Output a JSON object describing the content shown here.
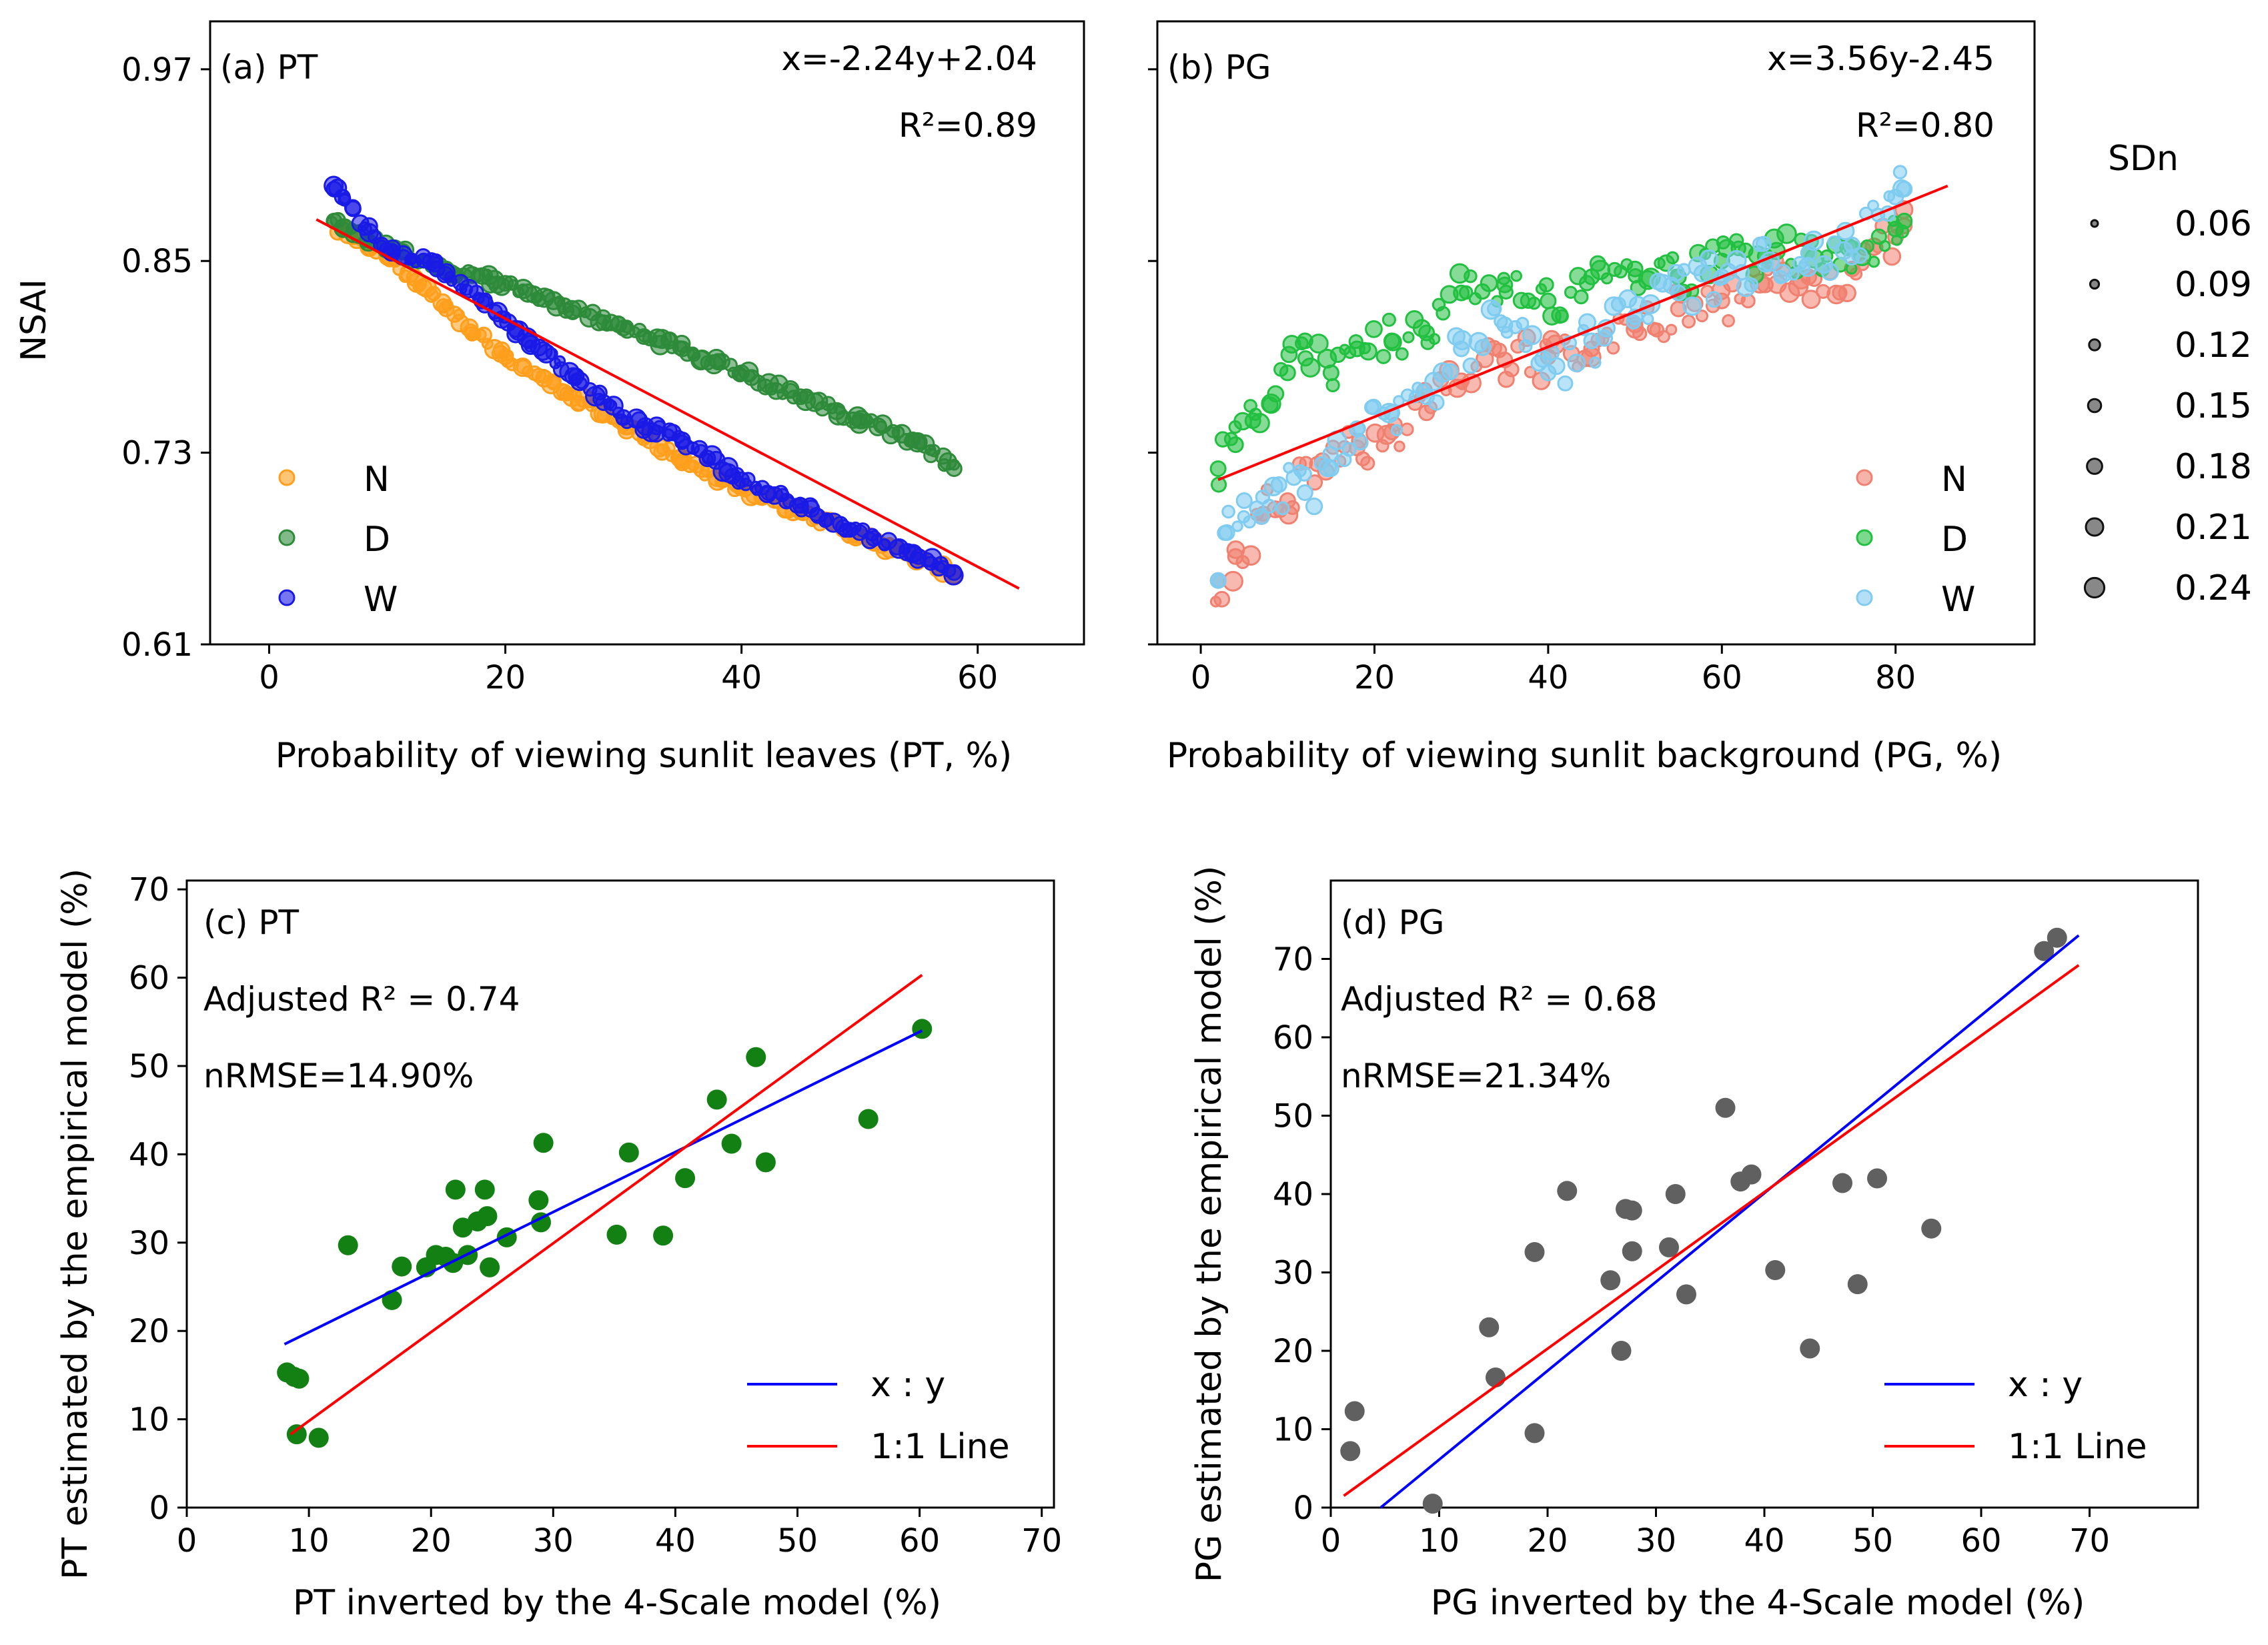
{
  "chart_data": [
    {
      "id": "a",
      "type": "scatter",
      "panel_label": "(a) PT",
      "equation": "x=-2.24y+2.04",
      "r2": "R²=0.89",
      "xlabel": "Probability of viewing sunlit leaves (PT, %)",
      "ylabel": "NSAI",
      "xlim": [
        -5,
        69
      ],
      "ylim": [
        0.61,
        1.0
      ],
      "xticks": [
        0,
        20,
        40,
        60
      ],
      "yticks": [
        0.61,
        0.73,
        0.85,
        0.97
      ],
      "ytick_labels": [
        "0.61",
        "0.73",
        "0.85",
        "0.97"
      ],
      "legend_position": "lower-left",
      "fit_line": {
        "x": [
          4,
          63.5
        ],
        "y": [
          0.876,
          0.645
        ],
        "color": "#ff0000"
      },
      "series": [
        {
          "name": "N",
          "color": "#ff9f1c",
          "x": [
            5.8,
            6.5,
            10,
            15,
            20,
            25,
            30,
            35,
            40,
            45,
            50,
            55,
            58
          ],
          "y": [
            0.868,
            0.87,
            0.853,
            0.82,
            0.79,
            0.768,
            0.748,
            0.725,
            0.708,
            0.693,
            0.678,
            0.664,
            0.653
          ]
        },
        {
          "name": "D",
          "color": "#2e8b3a",
          "x": [
            5.5,
            6.2,
            10,
            15,
            20,
            25,
            30,
            35,
            40,
            45,
            50,
            55,
            58
          ],
          "y": [
            0.875,
            0.87,
            0.858,
            0.845,
            0.836,
            0.822,
            0.808,
            0.795,
            0.78,
            0.765,
            0.75,
            0.737,
            0.72
          ]
        },
        {
          "name": "W",
          "color": "#1a1ae6",
          "x": [
            5.5,
            6.2,
            9.5,
            14,
            18,
            22,
            26,
            30,
            35,
            40,
            45,
            50,
            55,
            58
          ],
          "y": [
            0.895,
            0.89,
            0.86,
            0.848,
            0.825,
            0.8,
            0.778,
            0.752,
            0.738,
            0.713,
            0.697,
            0.68,
            0.665,
            0.655
          ]
        }
      ]
    },
    {
      "id": "b",
      "type": "scatter",
      "panel_label": "(b) PG",
      "equation": "x=3.56y-2.45",
      "r2": "R²=0.80",
      "xlabel": "Probability of viewing sunlit background (PG, %)",
      "ylabel": "",
      "xlim": [
        -5,
        96
      ],
      "ylim": [
        0.61,
        1.0
      ],
      "xticks": [
        0,
        20,
        40,
        60,
        80
      ],
      "yticks": [
        0.61,
        0.73,
        0.85,
        0.97
      ],
      "legend_position": "lower-right",
      "fit_line": {
        "x": [
          2,
          86
        ],
        "y": [
          0.713,
          0.897
        ],
        "color": "#ff0000"
      },
      "series": [
        {
          "name": "N",
          "color": "#f08070",
          "x": [
            2,
            4,
            7,
            10,
            14,
            18,
            22,
            26,
            30,
            35,
            40,
            45,
            50,
            55,
            60,
            65,
            70,
            75,
            80,
            81
          ],
          "y": [
            0.65,
            0.665,
            0.69,
            0.7,
            0.725,
            0.733,
            0.743,
            0.755,
            0.775,
            0.788,
            0.79,
            0.795,
            0.81,
            0.82,
            0.825,
            0.835,
            0.84,
            0.845,
            0.865,
            0.872
          ]
        },
        {
          "name": "D",
          "color": "#22c040",
          "x": [
            2,
            4,
            6,
            8,
            10,
            12,
            15,
            18,
            22,
            26,
            30,
            35,
            40,
            45,
            50,
            55,
            60,
            65,
            70,
            75,
            80,
            81
          ],
          "y": [
            0.72,
            0.735,
            0.75,
            0.76,
            0.78,
            0.8,
            0.78,
            0.795,
            0.8,
            0.805,
            0.83,
            0.835,
            0.825,
            0.84,
            0.845,
            0.84,
            0.85,
            0.853,
            0.855,
            0.858,
            0.87,
            0.875
          ]
        },
        {
          "name": "W",
          "color": "#80ccf0",
          "x": [
            2,
            3,
            5,
            7,
            9,
            12,
            15,
            18,
            22,
            26,
            30,
            35,
            40,
            45,
            50,
            55,
            60,
            65,
            70,
            75,
            80,
            81
          ],
          "y": [
            0.65,
            0.68,
            0.7,
            0.69,
            0.71,
            0.705,
            0.72,
            0.745,
            0.755,
            0.765,
            0.795,
            0.81,
            0.78,
            0.8,
            0.815,
            0.83,
            0.84,
            0.848,
            0.855,
            0.86,
            0.89,
            0.895
          ]
        }
      ]
    },
    {
      "id": "c",
      "type": "scatter",
      "panel_label": "(c) PT",
      "adjusted_r2": "Adjusted R² = 0.74",
      "nrmse": "nRMSE=14.90%",
      "xlabel": "PT inverted by the 4-Scale model (%)",
      "ylabel": "PT estimated by the empirical model (%)",
      "xlim": [
        0,
        71
      ],
      "ylim": [
        0,
        71
      ],
      "xticks": [
        0,
        10,
        20,
        30,
        40,
        50,
        60,
        70
      ],
      "yticks": [
        0,
        10,
        20,
        30,
        40,
        50,
        60,
        70
      ],
      "legend_position": "lower-right",
      "point_color": "#138013",
      "points": {
        "x": [
          8.2,
          8.8,
          9.0,
          9.2,
          10.8,
          13.2,
          16.8,
          17.6,
          19.6,
          20.4,
          21.2,
          21.8,
          22.0,
          22.6,
          23.0,
          23.8,
          24.4,
          24.6,
          24.8,
          26.2,
          28.8,
          29.0,
          29.2,
          35.2,
          36.2,
          39.0,
          40.8,
          43.4,
          44.6,
          46.6,
          47.4,
          55.8,
          60.2
        ],
        "y": [
          15.3,
          14.8,
          8.3,
          14.6,
          7.9,
          29.7,
          23.5,
          27.3,
          27.2,
          28.6,
          28.4,
          27.7,
          36.0,
          31.7,
          28.6,
          32.4,
          36.0,
          33.0,
          27.2,
          30.6,
          34.8,
          32.3,
          41.3,
          30.9,
          40.2,
          30.8,
          37.3,
          46.2,
          41.2,
          51.0,
          39.1,
          44.0,
          54.2
        ]
      },
      "lines": [
        {
          "name": "x : y",
          "color": "#0000ff",
          "x": [
            8,
            60.2
          ],
          "y": [
            18.5,
            54
          ]
        },
        {
          "name": "1:1 Line",
          "color": "#ff0000",
          "x": [
            8.5,
            60.2
          ],
          "y": [
            8.3,
            60.3
          ]
        }
      ]
    },
    {
      "id": "d",
      "type": "scatter",
      "panel_label": "(d) PG",
      "adjusted_r2": "Adjusted R² = 0.68",
      "nrmse": "nRMSE=21.34%",
      "xlabel": "PG inverted by the 4-Scale model (%)",
      "ylabel": "PG estimated by the empirical model (%)",
      "xlim": [
        0,
        80
      ],
      "ylim": [
        0,
        80
      ],
      "xticks": [
        0,
        10,
        20,
        30,
        40,
        50,
        60,
        70
      ],
      "yticks": [
        0,
        10,
        20,
        30,
        40,
        50,
        60,
        70
      ],
      "legend_position": "lower-right",
      "point_color": "#606060",
      "points": {
        "x": [
          1.8,
          2.2,
          9.4,
          14.6,
          15.2,
          18.8,
          18.8,
          21.8,
          25.8,
          26.8,
          27.2,
          27.8,
          27.8,
          31.2,
          31.8,
          32.8,
          36.4,
          37.8,
          38.8,
          41.0,
          44.2,
          47.2,
          48.6,
          50.4,
          55.4,
          65.8,
          67.0
        ],
        "y": [
          7.2,
          12.3,
          0.5,
          23.0,
          16.6,
          32.6,
          9.5,
          40.4,
          29.0,
          20.0,
          38.1,
          37.9,
          32.7,
          33.2,
          40.0,
          27.2,
          51.0,
          41.6,
          42.5,
          30.3,
          20.3,
          41.4,
          28.5,
          42.0,
          35.6,
          71.0,
          72.7
        ]
      },
      "lines": [
        {
          "name": "x : y",
          "color": "#0000ff",
          "x": [
            4.6,
            69
          ],
          "y": [
            0,
            73
          ]
        },
        {
          "name": "1:1 Line",
          "color": "#ff0000",
          "x": [
            1.2,
            69
          ],
          "y": [
            1.5,
            69.2
          ]
        }
      ]
    }
  ],
  "size_legend": {
    "title": "SDn",
    "values": [
      "0.06",
      "0.09",
      "0.12",
      "0.15",
      "0.18",
      "0.21",
      "0.24"
    ]
  }
}
